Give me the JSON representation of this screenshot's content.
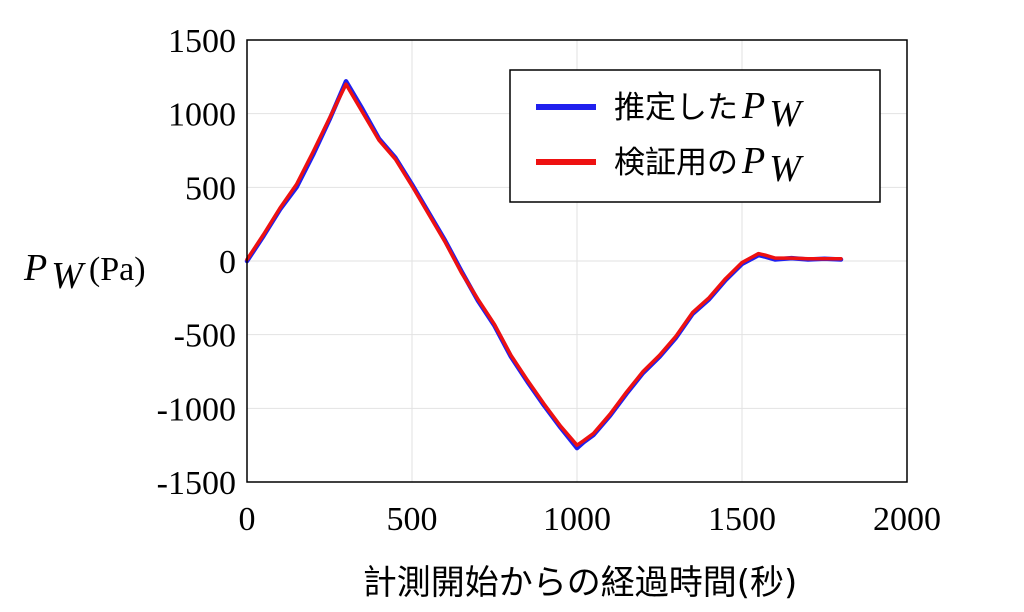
{
  "chart_data": {
    "type": "line",
    "xlabel": "計測開始からの経過時間(秒)",
    "ylabel": {
      "symbol": "P",
      "subscript": "W",
      "unit": "(Pa)"
    },
    "xlim": [
      0,
      2000
    ],
    "ylim": [
      -1500,
      1500
    ],
    "x_ticks": [
      0,
      500,
      1000,
      1500,
      2000
    ],
    "y_ticks": [
      -1500,
      -1000,
      -500,
      0,
      500,
      1000,
      1500
    ],
    "grid": true,
    "legend_position": "top-right",
    "series": [
      {
        "name": "推定した",
        "name_symbol": "P",
        "name_subscript": "W",
        "color": "#2020ee",
        "x": [
          0,
          50,
          100,
          150,
          200,
          250,
          300,
          350,
          400,
          450,
          500,
          550,
          600,
          650,
          700,
          750,
          800,
          850,
          900,
          950,
          1000,
          1020,
          1050,
          1100,
          1150,
          1200,
          1250,
          1300,
          1350,
          1400,
          1450,
          1500,
          1550,
          1570,
          1600,
          1650,
          1700,
          1750,
          1800
        ],
        "y": [
          0,
          170,
          350,
          500,
          720,
          960,
          1220,
          1030,
          830,
          700,
          520,
          330,
          140,
          -70,
          -270,
          -440,
          -650,
          -820,
          -980,
          -1130,
          -1270,
          -1230,
          -1180,
          -1050,
          -900,
          -760,
          -650,
          -520,
          -360,
          -260,
          -130,
          -20,
          40,
          30,
          10,
          20,
          10,
          15,
          10
        ]
      },
      {
        "name": "検証用の",
        "name_symbol": "P",
        "name_subscript": "W",
        "color": "#ee1111",
        "x": [
          0,
          50,
          100,
          150,
          200,
          250,
          300,
          350,
          400,
          450,
          500,
          550,
          600,
          650,
          700,
          750,
          800,
          850,
          900,
          950,
          1000,
          1020,
          1050,
          1100,
          1150,
          1200,
          1250,
          1300,
          1350,
          1400,
          1450,
          1500,
          1550,
          1570,
          1600,
          1650,
          1700,
          1750,
          1800
        ],
        "y": [
          10,
          180,
          360,
          520,
          740,
          970,
          1200,
          1010,
          820,
          690,
          510,
          320,
          130,
          -80,
          -260,
          -430,
          -640,
          -810,
          -970,
          -1120,
          -1250,
          -1220,
          -1170,
          -1040,
          -890,
          -750,
          -640,
          -510,
          -350,
          -250,
          -120,
          -10,
          50,
          40,
          20,
          20,
          15,
          15,
          15
        ]
      }
    ]
  }
}
